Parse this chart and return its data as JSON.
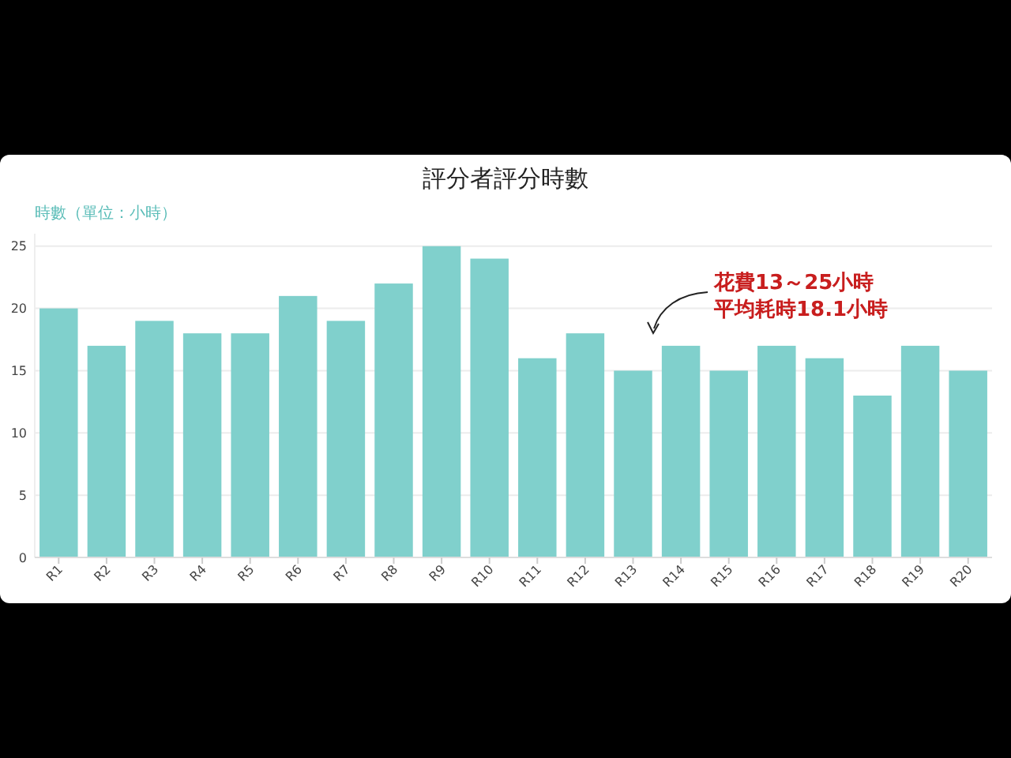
{
  "chart_data": {
    "type": "bar",
    "title": "評分者評分時數",
    "ylabel": "時數（單位：小時）",
    "categories": [
      "R1",
      "R2",
      "R3",
      "R4",
      "R5",
      "R6",
      "R7",
      "R8",
      "R9",
      "R10",
      "R11",
      "R12",
      "R13",
      "R14",
      "R15",
      "R16",
      "R17",
      "R18",
      "R19",
      "R20"
    ],
    "values": [
      20,
      17,
      19,
      18,
      18,
      21,
      19,
      22,
      25,
      24,
      16,
      18,
      15,
      17,
      15,
      17,
      16,
      13,
      17,
      15
    ],
    "color": "#80d0cc",
    "ylim": [
      0,
      26
    ],
    "yticks": [
      0,
      5,
      10,
      15,
      20,
      25
    ],
    "grid": "y",
    "annotations": [
      "花費13～25小時",
      "平均耗時18.1小時"
    ]
  }
}
